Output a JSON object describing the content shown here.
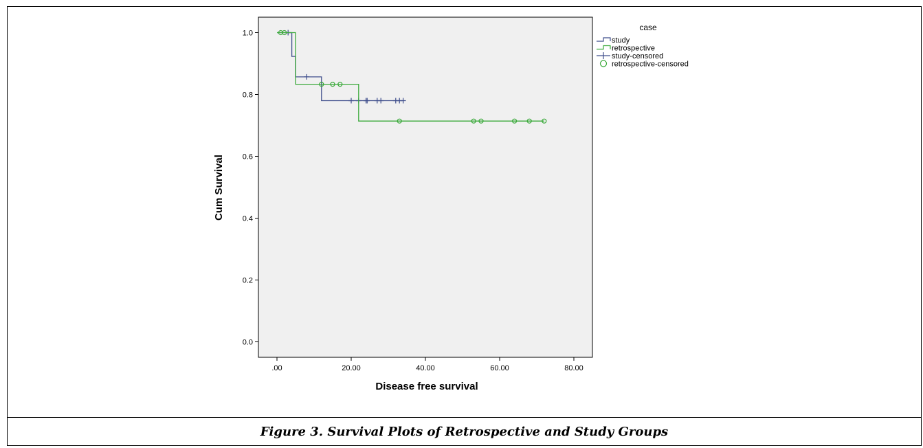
{
  "caption": "Figure 3. Survival Plots of Retrospective and Study Groups",
  "chart_data": {
    "type": "line",
    "subtype": "kaplan-meier-step",
    "xlabel": "Disease free survival",
    "ylabel": "Cum Survival",
    "xlim": [
      -5,
      85
    ],
    "ylim": [
      -0.05,
      1.05
    ],
    "x_ticks": [
      0,
      20,
      40,
      60,
      80
    ],
    "x_tick_labels": [
      ".00",
      "20.00",
      "40.00",
      "60.00",
      "80.00"
    ],
    "y_ticks": [
      0,
      0.2,
      0.4,
      0.6,
      0.8,
      1.0
    ],
    "y_tick_labels": [
      "0.0",
      "0.2",
      "0.4",
      "0.6",
      "0.8",
      "1.0"
    ],
    "grid": false,
    "plot_background": "#f0f0f0",
    "legend": {
      "title": "case",
      "placement": "right",
      "entries": [
        {
          "label": "study",
          "kind": "line",
          "color": "#3f4e8c"
        },
        {
          "label": "retrospective",
          "kind": "line",
          "color": "#3aa93a"
        },
        {
          "label": "study-censored",
          "kind": "plus",
          "color": "#3f4e8c"
        },
        {
          "label": "retrospective-censored",
          "kind": "circle",
          "color": "#3aa93a"
        }
      ]
    },
    "series": [
      {
        "name": "study",
        "color": "#3f4e8c",
        "steps": [
          [
            0,
            1.0
          ],
          [
            4,
            0.923
          ],
          [
            5,
            0.857
          ],
          [
            12,
            0.78
          ],
          [
            34,
            0.78
          ]
        ],
        "censored": [
          [
            3,
            1.0
          ],
          [
            8,
            0.857
          ],
          [
            20,
            0.78
          ],
          [
            22,
            0.78
          ],
          [
            24,
            0.78
          ],
          [
            24.3,
            0.78
          ],
          [
            27,
            0.78
          ],
          [
            28,
            0.78
          ],
          [
            32,
            0.78
          ],
          [
            33,
            0.78
          ],
          [
            34,
            0.78
          ]
        ]
      },
      {
        "name": "retrospective",
        "color": "#3aa93a",
        "steps": [
          [
            0,
            1.0
          ],
          [
            4,
            1.0
          ],
          [
            5,
            0.833
          ],
          [
            22,
            0.714
          ],
          [
            72,
            0.714
          ]
        ],
        "censored": [
          [
            1,
            1.0
          ],
          [
            2,
            1.0
          ],
          [
            12,
            0.833
          ],
          [
            15,
            0.833
          ],
          [
            17,
            0.833
          ],
          [
            33,
            0.714
          ],
          [
            53,
            0.714
          ],
          [
            55,
            0.714
          ],
          [
            64,
            0.714
          ],
          [
            68,
            0.714
          ],
          [
            72,
            0.714
          ]
        ]
      }
    ]
  }
}
